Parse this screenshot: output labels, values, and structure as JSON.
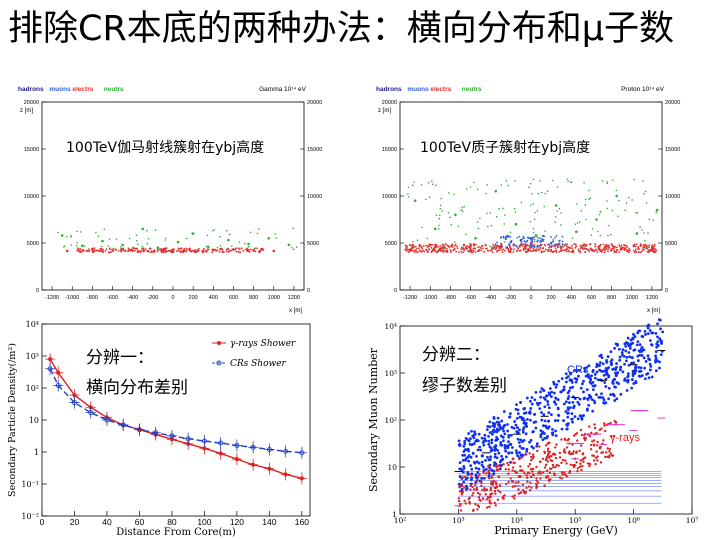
{
  "slide": {
    "title": "排除CR本底的两种办法：横向分布和μ子数",
    "cap_gamma": "100TeV伽马射线簇射在ybj高度",
    "cap_proton": "100TeV质子簇射在ybj高度",
    "label_method1": "分辨一：",
    "label_method1_sub": "横向分布差别",
    "label_method2": "分辨二：",
    "label_method2_sub": "缪子数差别"
  },
  "colors": {
    "hadrons": "#1a1a8c",
    "muons": "#3060d0",
    "electrons": "#e03030",
    "neutrons": "#30b030",
    "gamma_red": "#e02020",
    "cr_blue": "#1030f0",
    "magenta": "#e040c0"
  },
  "chart_data": [
    {
      "type": "scatter",
      "legend": [
        "hadrons",
        "muons",
        "electrs",
        "neutrs"
      ],
      "header_right": "Gamma 10¹⁴ eV",
      "ylabel": "z [m]",
      "xlabel": "x [m]",
      "xlim": [
        -1300,
        1300
      ],
      "ylim": [
        0,
        20000
      ],
      "x_ticks": [
        "-1200",
        "-1000",
        "-800",
        "-600",
        "-400",
        "-200",
        "0",
        "200",
        "400",
        "600",
        "800",
        "1000",
        "1200"
      ],
      "y_ticks": [
        "0",
        "5000",
        "10000",
        "15000",
        "20000"
      ],
      "series": [
        {
          "name": "electrs",
          "x": [
            -1050,
            -800,
            -600,
            -400,
            -250,
            -100,
            0,
            100,
            250,
            400,
            600,
            800,
            1000
          ],
          "y": [
            4150,
            4300,
            4250,
            4200,
            4150,
            4100,
            4050,
            4100,
            4200,
            4250,
            4300,
            4200,
            4150
          ]
        },
        {
          "name": "neutrs",
          "x": [
            -1100,
            -900,
            -700,
            -500,
            -300,
            -150,
            50,
            200,
            350,
            550,
            750,
            950,
            1150
          ],
          "y": [
            5800,
            4700,
            5200,
            4800,
            6500,
            4500,
            5100,
            6000,
            4600,
            5300,
            4900,
            5500,
            4800
          ]
        }
      ]
    },
    {
      "type": "scatter",
      "legend": [
        "hadrons",
        "muons",
        "electrs",
        "neutrs"
      ],
      "header_right": "Proton 10¹⁴ eV",
      "ylabel": "z [m]",
      "xlabel": "x [m]",
      "xlim": [
        -1300,
        1300
      ],
      "ylim": [
        0,
        20000
      ],
      "x_ticks": [
        "-1200",
        "-1000",
        "-800",
        "-600",
        "-400",
        "-200",
        "0",
        "200",
        "400",
        "600",
        "800",
        "1000",
        "1200"
      ],
      "y_ticks": [
        "0",
        "5000",
        "10000",
        "15000",
        "20000"
      ],
      "series": [
        {
          "name": "electrs",
          "x": [
            -1200,
            -900,
            -600,
            -300,
            -100,
            0,
            100,
            300,
            600,
            900,
            1200
          ],
          "y": [
            4200,
            4400,
            4300,
            4500,
            4800,
            5000,
            4800,
            4500,
            4300,
            4400,
            4200
          ]
        },
        {
          "name": "muons",
          "x": [
            -200,
            -100,
            0,
            100,
            200
          ],
          "y": [
            5100,
            5300,
            5500,
            5200,
            5000
          ]
        },
        {
          "name": "neutrs",
          "x": [
            -1150,
            -950,
            -750,
            -550,
            -350,
            -150,
            50,
            250,
            450,
            650,
            850,
            1050,
            1250
          ],
          "y": [
            9500,
            6500,
            8000,
            5500,
            10500,
            7000,
            5800,
            9000,
            6200,
            7500,
            10000,
            6000,
            8500
          ]
        }
      ]
    },
    {
      "type": "line",
      "ylabel": "Secondary Particle Density(/m²)",
      "xlabel": "Distance From Core(m)",
      "xlim": [
        0,
        165
      ],
      "ylog": true,
      "ylim": [
        0.01,
        10000
      ],
      "x_ticks": [
        "0",
        "20",
        "40",
        "60",
        "80",
        "100",
        "120",
        "140",
        "160"
      ],
      "y_ticks": [
        "10⁻²",
        "10⁻¹",
        "1",
        "10",
        "10²",
        "10³",
        "10⁴"
      ],
      "series": [
        {
          "name": "γ-rays Shower",
          "x": [
            5,
            10,
            20,
            30,
            40,
            50,
            60,
            70,
            80,
            90,
            100,
            110,
            120,
            130,
            140,
            150,
            160
          ],
          "y": [
            800,
            300,
            60,
            25,
            12,
            7,
            5,
            3.5,
            2.5,
            1.8,
            1.3,
            0.9,
            0.6,
            0.4,
            0.3,
            0.2,
            0.15
          ]
        },
        {
          "name": "CRs Shower",
          "x": [
            5,
            10,
            20,
            30,
            40,
            50,
            60,
            70,
            80,
            90,
            100,
            110,
            120,
            130,
            140,
            150,
            160
          ],
          "y": [
            400,
            120,
            35,
            17,
            10,
            7,
            5,
            4,
            3.2,
            2.6,
            2.2,
            1.9,
            1.6,
            1.4,
            1.2,
            1.05,
            0.95
          ]
        }
      ]
    },
    {
      "type": "scatter",
      "ylabel": "Secondary Muon Number",
      "xlabel": "Primary Energy (GeV)",
      "xlog": true,
      "ylog": true,
      "xlim": [
        100,
        10000000
      ],
      "ylim": [
        1,
        10000
      ],
      "x_ticks": [
        "10²",
        "10³",
        "10⁴",
        "10⁵",
        "10⁶",
        "10⁷"
      ],
      "y_ticks": [
        "1",
        "10",
        "10²",
        "10³",
        "10⁴"
      ],
      "series": [
        {
          "name": "CRs",
          "x": [
            1000,
            3000,
            10000,
            30000,
            100000,
            300000,
            1000000,
            3000000
          ],
          "y": [
            8,
            20,
            50,
            120,
            300,
            700,
            1500,
            3000
          ]
        },
        {
          "name": "γ-rays",
          "x": [
            1000,
            3000,
            10000,
            30000,
            100000,
            300000,
            1000000,
            3000000
          ],
          "y": [
            1.5,
            2,
            4,
            8,
            15,
            30,
            60,
            110
          ]
        }
      ]
    }
  ]
}
